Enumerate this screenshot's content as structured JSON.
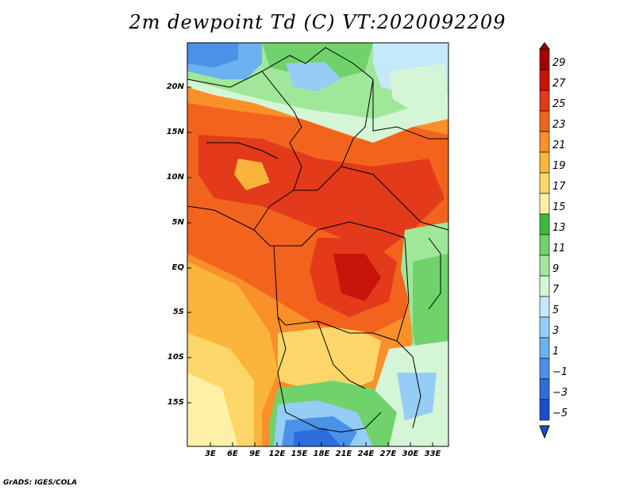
{
  "title": "2m dewpoint Td (C) VT:2020092209",
  "footer": "GrADS: IGES/COLA",
  "map": {
    "lat_labels": [
      "20N",
      "15N",
      "10N",
      "5N",
      "EQ",
      "5S",
      "10S",
      "15S"
    ],
    "lon_labels": [
      "3E",
      "6E",
      "9E",
      "12E",
      "15E",
      "18E",
      "21E",
      "24E",
      "27E",
      "30E",
      "33E"
    ],
    "variable": "2m dewpoint",
    "units": "C",
    "valid_time": "2020092209"
  },
  "colorbar": {
    "labels": [
      "29",
      "27",
      "25",
      "23",
      "21",
      "19",
      "17",
      "15",
      "13",
      "11",
      "9",
      "7",
      "5",
      "3",
      "1",
      "−1",
      "−3",
      "−5"
    ],
    "colors": [
      "#a50000",
      "#c8140a",
      "#e23a1a",
      "#f2641e",
      "#f9902a",
      "#fbb43c",
      "#fdd66a",
      "#fff0a8",
      "#3fb93c",
      "#6fd26a",
      "#a0e79a",
      "#d4f6d6",
      "#c6e8fb",
      "#96cdf6",
      "#6ab1ef",
      "#4a92e8",
      "#2f6ddf",
      "#1c4fd0"
    ]
  },
  "colors": {
    "frame": "#000000",
    "land_border": "#000000"
  }
}
